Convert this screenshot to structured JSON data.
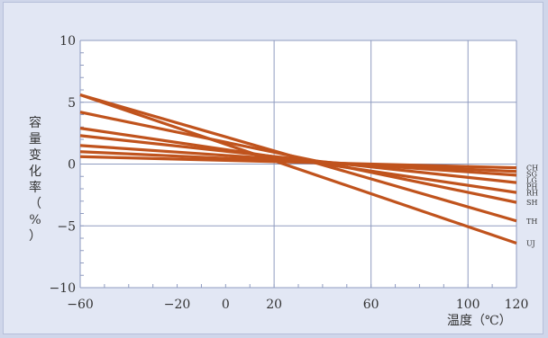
{
  "chart_data": {
    "type": "line",
    "xlabel": "温度（℃）",
    "ylabel": "容量变化率（%）",
    "xlim": [
      -60,
      120
    ],
    "ylim": [
      -10,
      10
    ],
    "x_ticks": [
      -60,
      -20,
      0,
      20,
      60,
      100,
      120
    ],
    "x_tick_labels": [
      "−60",
      "−20",
      "0",
      "20",
      "60",
      "100",
      "120"
    ],
    "y_ticks": [
      10,
      5,
      0,
      -5,
      -10
    ],
    "y_tick_labels": [
      "10",
      "5",
      "0",
      "−5",
      "−10"
    ],
    "x_gridlines": [
      -60,
      20,
      60,
      100,
      120
    ],
    "y_gridlines": [
      10,
      5,
      0,
      -5,
      -10
    ],
    "grid": true,
    "line_color": "#c0531d",
    "series": [
      {
        "name": "CH",
        "x": [
          -60,
          120
        ],
        "y": [
          0.6,
          -0.3
        ]
      },
      {
        "name": "SG",
        "x": [
          -60,
          120
        ],
        "y": [
          1.0,
          -0.6
        ]
      },
      {
        "name": "LG",
        "x": [
          -60,
          120
        ],
        "y": [
          1.5,
          -0.9
        ]
      },
      {
        "name": "PH",
        "x": [
          -60,
          120
        ],
        "y": [
          2.3,
          -1.5
        ]
      },
      {
        "name": "RH",
        "x": [
          -60,
          120
        ],
        "y": [
          2.9,
          -2.3
        ]
      },
      {
        "name": "SH",
        "x": [
          -60,
          120
        ],
        "y": [
          4.2,
          -3.1
        ]
      },
      {
        "name": "TH",
        "x": [
          -60,
          120
        ],
        "y": [
          5.6,
          -4.6
        ]
      },
      {
        "name": "UJ",
        "x": [
          -60,
          120
        ],
        "y": [
          5.6,
          -6.4
        ]
      }
    ],
    "legend_labels": [
      {
        "text": "CH",
        "series": 0
      },
      {
        "text": "SG",
        "series": 1
      },
      {
        "text": "LG",
        "series": 2
      },
      {
        "text": "PH",
        "series": 3
      },
      {
        "text": "RH",
        "series": 4
      },
      {
        "text": "SH",
        "series": 5
      },
      {
        "text": "TH",
        "series": 6
      },
      {
        "text": "UJ",
        "series": 7
      }
    ]
  }
}
